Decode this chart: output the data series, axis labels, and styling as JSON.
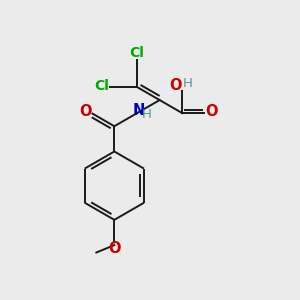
{
  "background_color": "#ebebeb",
  "line_color": "#1a1a1a",
  "cl_color": "#00aa00",
  "o_color": "#cc0000",
  "n_color": "#0000cc",
  "teal_color": "#4d9999",
  "bond_lw": 1.4,
  "dbo": 0.012,
  "figsize": [
    3.0,
    3.0
  ],
  "dpi": 100,
  "xlim": [
    0,
    1
  ],
  "ylim": [
    0,
    1
  ]
}
